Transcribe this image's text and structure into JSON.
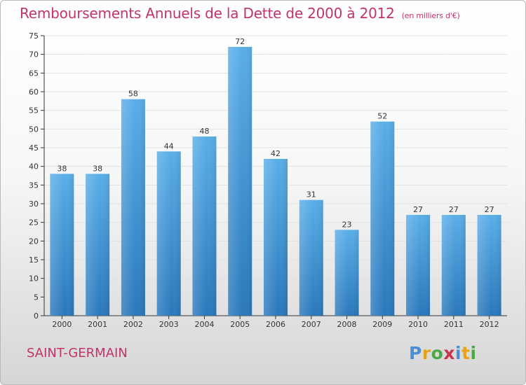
{
  "title": "Remboursements Annuels de la Dette de 2000 à 2012",
  "unit_note": "(en milliers d'€)",
  "commune": "SAINT-GERMAIN",
  "logo": {
    "letters": [
      "P",
      "r",
      "o",
      "x",
      "i",
      "t",
      "i"
    ]
  },
  "colors": {
    "bar_light": "#5aaee8",
    "bar_dark": "#2a78bb",
    "title": "#c2336b",
    "axis": "#333333",
    "grid": "#e2e2e2"
  },
  "chart_data": {
    "type": "bar",
    "title": "Remboursements Annuels de la Dette de 2000 à 2012",
    "xlabel": "",
    "ylabel": "",
    "categories": [
      "2000",
      "2001",
      "2002",
      "2003",
      "2004",
      "2005",
      "2006",
      "2007",
      "2008",
      "2009",
      "2010",
      "2011",
      "2012"
    ],
    "values": [
      38,
      38,
      58,
      44,
      48,
      72,
      42,
      31,
      23,
      52,
      27,
      27,
      27
    ],
    "ylim": [
      0,
      75
    ],
    "yticks": [
      0,
      5,
      10,
      15,
      20,
      25,
      30,
      35,
      40,
      45,
      50,
      55,
      60,
      65,
      70,
      75
    ],
    "grid": true,
    "data_labels": true
  }
}
